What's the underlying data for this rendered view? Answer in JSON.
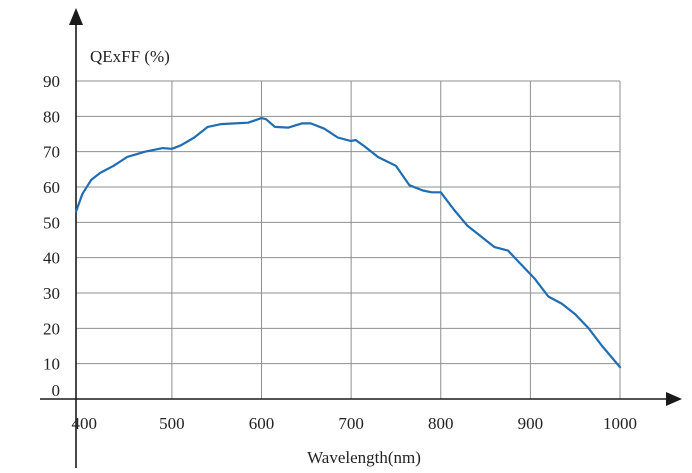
{
  "chart_data": {
    "type": "line",
    "ylabel": "QExFF (%)",
    "xlabel": "Wavelength(nm)",
    "xlim": [
      400,
      1000
    ],
    "ylim": [
      0,
      90
    ],
    "x_ticks": [
      400,
      500,
      600,
      700,
      800,
      900,
      1000
    ],
    "y_ticks": [
      0,
      10,
      20,
      30,
      40,
      50,
      60,
      70,
      80,
      90
    ],
    "grid": true,
    "colors": {
      "series": "#1f6db3",
      "grid": "#8f8f8f",
      "axis": "#1a1a1a"
    },
    "series": [
      {
        "x": [
          393,
          400,
          410,
          420,
          435,
          450,
          470,
          490,
          500,
          510,
          525,
          540,
          555,
          570,
          585,
          600,
          605,
          615,
          630,
          645,
          655,
          670,
          685,
          700,
          705,
          715,
          730,
          750,
          765,
          780,
          790,
          800,
          815,
          830,
          845,
          860,
          875,
          890,
          905,
          920,
          935,
          950,
          965,
          980,
          1000
        ],
        "y": [
          53,
          58,
          62,
          64,
          66,
          68.5,
          70,
          71,
          70.8,
          71.8,
          74,
          77,
          77.8,
          78,
          78.2,
          79.5,
          79.2,
          77,
          76.8,
          78,
          78,
          76.5,
          74,
          73,
          73.3,
          71.5,
          68.5,
          66,
          60.5,
          59,
          58.5,
          58.5,
          53.5,
          49,
          46,
          43,
          42,
          38,
          34,
          29,
          27,
          24,
          20,
          15,
          9
        ]
      }
    ]
  }
}
